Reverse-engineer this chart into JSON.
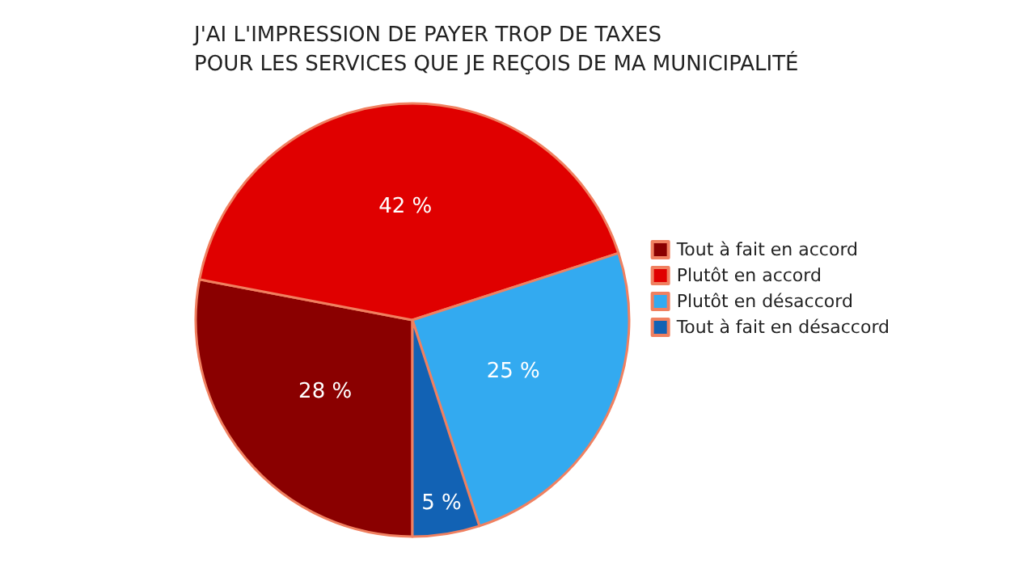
{
  "chart_data": {
    "type": "pie",
    "title": "J'AI L'IMPRESSION DE PAYER TROP DE TAXES\nPOUR LES SERVICES QUE JE REÇOIS DE MA MUNICIPALITÉ",
    "categories": [
      "Tout à fait en accord",
      "Plutôt en accord",
      "Plutôt en désaccord",
      "Tout à fait en désaccord"
    ],
    "values": [
      28,
      42,
      25,
      5
    ],
    "colors": [
      "#8a0000",
      "#e00000",
      "#33aaf0",
      "#1262b4"
    ],
    "value_labels": [
      "28 %",
      "42 %",
      "25 %",
      "5 %"
    ],
    "legend": "right"
  }
}
